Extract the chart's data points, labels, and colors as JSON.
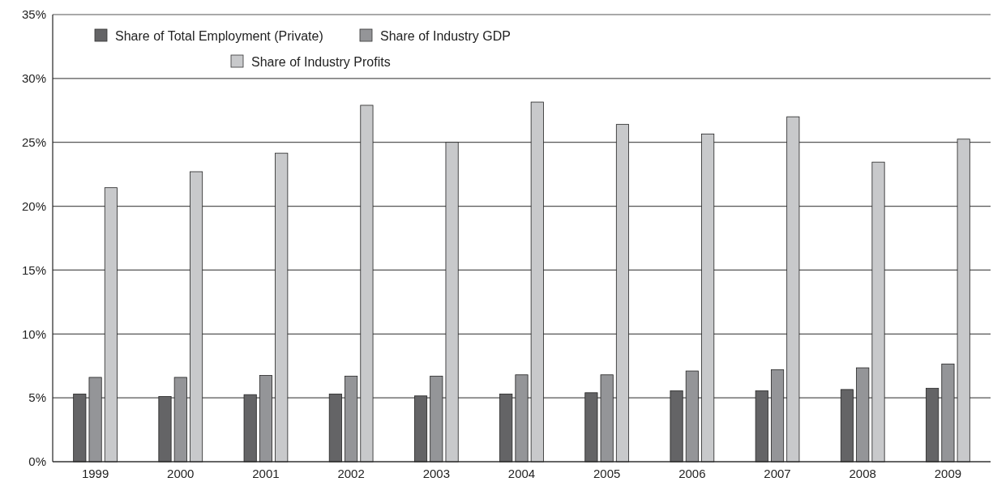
{
  "chart_data": {
    "type": "bar",
    "categories": [
      "1999",
      "2000",
      "2001",
      "2002",
      "2003",
      "2004",
      "2005",
      "2006",
      "2007",
      "2008",
      "2009"
    ],
    "series": [
      {
        "name": "Share of Total Employment (Private)",
        "color": "#646466",
        "values": [
          5.3,
          5.1,
          5.25,
          5.3,
          5.15,
          5.3,
          5.4,
          5.55,
          5.55,
          5.65,
          5.75
        ]
      },
      {
        "name": "Share of Industry GDP",
        "color": "#949598",
        "values": [
          6.6,
          6.6,
          6.75,
          6.7,
          6.7,
          6.8,
          6.8,
          7.1,
          7.2,
          7.35,
          7.65
        ]
      },
      {
        "name": "Share of Industry Profits",
        "color": "#c8c9cb",
        "values": [
          21.45,
          22.7,
          24.15,
          27.9,
          25.0,
          28.15,
          26.4,
          25.65,
          27.0,
          23.45,
          25.25
        ]
      }
    ],
    "ylim": [
      0,
      35
    ],
    "yticks": [
      {
        "value": 0,
        "label": "0%"
      },
      {
        "value": 5,
        "label": "5%"
      },
      {
        "value": 10,
        "label": "10%"
      },
      {
        "value": 15,
        "label": "15%"
      },
      {
        "value": 20,
        "label": "20%"
      },
      {
        "value": 25,
        "label": "25%"
      },
      {
        "value": 30,
        "label": "30%"
      },
      {
        "value": 35,
        "label": "35%"
      }
    ],
    "grid": "y",
    "legend": "top"
  }
}
